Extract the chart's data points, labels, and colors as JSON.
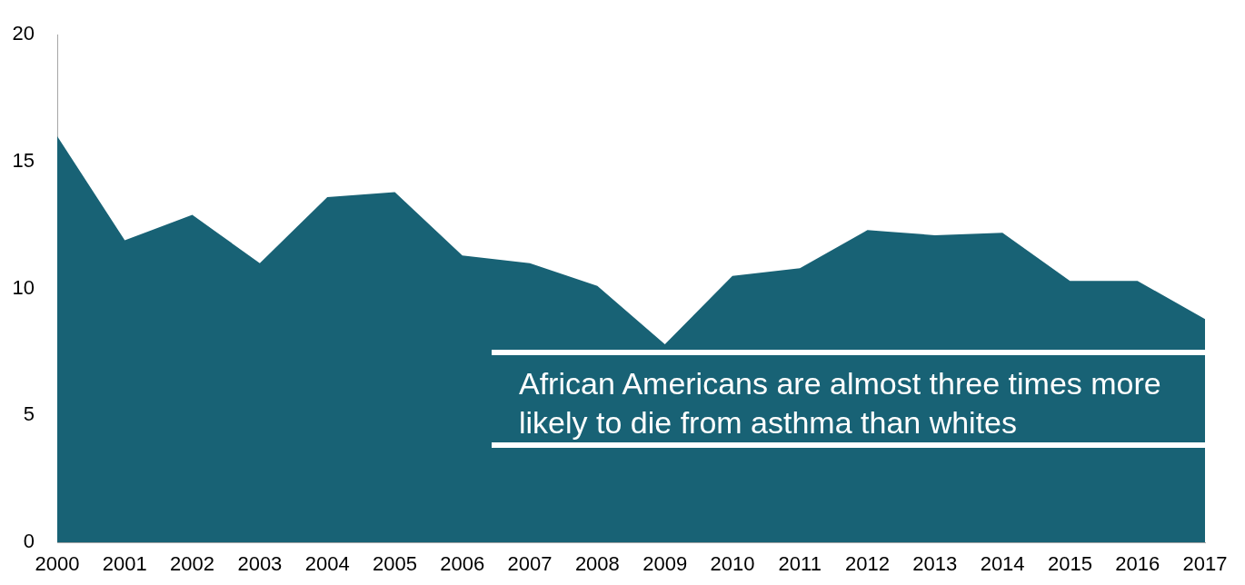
{
  "chart_data": {
    "type": "area",
    "categories": [
      "2000",
      "2001",
      "2002",
      "2003",
      "2004",
      "2005",
      "2006",
      "2007",
      "2008",
      "2009",
      "2010",
      "2011",
      "2012",
      "2013",
      "2014",
      "2015",
      "2016",
      "2017"
    ],
    "values": [
      16.0,
      11.9,
      12.9,
      11.0,
      13.6,
      13.8,
      11.3,
      11.0,
      10.1,
      7.8,
      10.5,
      10.8,
      12.3,
      12.1,
      12.2,
      10.3,
      10.3,
      8.8
    ],
    "color": "#186275",
    "ylim": [
      0,
      20
    ],
    "yticks": [
      0,
      5,
      10,
      15,
      20
    ],
    "annotations": [
      "African Americans are almost three times more likely to die from asthma than whites"
    ]
  }
}
